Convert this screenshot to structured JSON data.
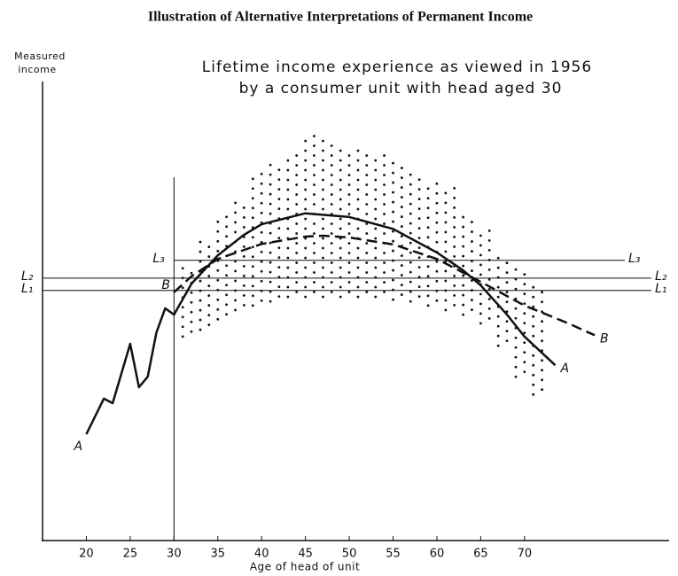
{
  "chart_data": {
    "type": "line",
    "title": "Illustration of Alternative Interpretations of Permanent Income",
    "ylabel": [
      "Measured",
      "income"
    ],
    "xlabel": "Age of head of unit",
    "annotation": [
      "Lifetime income experience as viewed in 1956",
      "by a consumer unit with head aged 30"
    ],
    "xlim": [
      15,
      86.5
    ],
    "ylim": [
      0,
      100
    ],
    "xticks": [
      20,
      25,
      30,
      35,
      40,
      45,
      50,
      55,
      60,
      65,
      70
    ],
    "vline": 30,
    "levels": [
      {
        "name": "L₃",
        "value": 61.4
      },
      {
        "name": "L₂",
        "value": 57.5
      },
      {
        "name": "L₁",
        "value": 54.8
      }
    ],
    "series": [
      {
        "name": "A",
        "color": "#111111",
        "dash": false,
        "x": [
          20,
          22,
          23,
          25,
          26,
          27,
          28,
          29,
          30,
          32,
          35,
          38,
          40,
          45,
          50,
          55,
          60,
          63,
          65,
          68,
          70,
          73.5
        ],
        "values": [
          23.3,
          31.1,
          30.1,
          43.1,
          33.6,
          35.9,
          45.6,
          50.9,
          49.5,
          56.3,
          62.5,
          67.0,
          69.3,
          71.7,
          70.9,
          68.3,
          63.1,
          59.2,
          55.9,
          49.5,
          44.7,
          38.4
        ]
      },
      {
        "name": "B",
        "color": "#111111",
        "dash": true,
        "x": [
          30,
          32,
          35,
          40,
          45,
          47,
          50,
          55,
          60,
          65,
          70,
          75,
          78
        ],
        "values": [
          54.4,
          57.9,
          61.7,
          65.0,
          66.6,
          66.8,
          66.4,
          64.9,
          61.7,
          56.7,
          51.5,
          47.6,
          45.0
        ]
      }
    ],
    "dot_band": {
      "x": [
        31,
        33,
        35,
        37,
        39,
        41,
        43,
        45,
        47,
        49,
        51,
        53,
        55,
        57,
        59,
        61,
        63,
        65,
        67,
        69,
        71
      ],
      "low": [
        44.7,
        46.2,
        48.5,
        50.5,
        51.5,
        52.4,
        53.4,
        53.4,
        53.4,
        53.4,
        53.4,
        53.4,
        52.8,
        52.4,
        51.5,
        50.5,
        49.5,
        47.6,
        42.7,
        35.9,
        32.0
      ],
      "high": [
        60.2,
        66.0,
        71.8,
        74.8,
        80.6,
        82.5,
        85.4,
        89.3,
        87.8,
        86.4,
        85.8,
        85.0,
        83.5,
        80.6,
        78.6,
        77.7,
        71.8,
        68.9,
        62.1,
        60.2,
        56.3
      ]
    }
  }
}
